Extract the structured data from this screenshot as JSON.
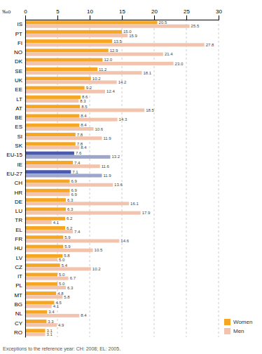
{
  "chart_data": {
    "type": "bar",
    "orientation": "horizontal",
    "xlabel": "‰o",
    "annotations": [
      "Exceptions to the reference year: CH: 2008; EL: 2005."
    ],
    "categories": [
      "IS",
      "PT",
      "FI",
      "NO",
      "DK",
      "SE",
      "UK",
      "EE",
      "LT",
      "AT",
      "BE",
      "ES",
      "SI",
      "SK",
      "EU-15",
      "IE",
      "EU-27",
      "CH",
      "HR",
      "DE",
      "LU",
      "TR",
      "EL",
      "FR",
      "HU",
      "LV",
      "CZ",
      "IT",
      "PL",
      "MT",
      "BG",
      "NL",
      "CY",
      "RO"
    ],
    "series": [
      {
        "name": "Women",
        "color": "#F5A623",
        "colors": [
          "#F5A623",
          "#F5A623",
          "#F5A623",
          "#F5A623",
          "#F5A623",
          "#F5A623",
          "#F5A623",
          "#F5A623",
          "#F5A623",
          "#F5A623",
          "#F5A623",
          "#F5A623",
          "#F5A623",
          "#F5A623",
          "#4A5BAD",
          "#F5A623",
          "#4A5BAD",
          "#F5A623",
          "#F5A623",
          "#F5A623",
          "#F5A623",
          "#F5A623",
          "#F5A623",
          "#F5A623",
          "#F5A623",
          "#F5A623",
          "#F5A623",
          "#F5A623",
          "#F5A623",
          "#F5A623",
          "#F5A623",
          "#F5A623",
          "#F5A623",
          "#F5A623"
        ],
        "values": [
          20.5,
          15.0,
          13.5,
          12.9,
          12.0,
          11.2,
          10.2,
          9.2,
          8.6,
          8.5,
          8.4,
          8.4,
          7.8,
          7.8,
          7.6,
          7.4,
          7.1,
          6.9,
          6.9,
          6.3,
          6.3,
          6.2,
          6.2,
          5.9,
          5.9,
          5.8,
          5.4,
          5.0,
          5.0,
          4.8,
          4.5,
          3.4,
          3.3,
          3.1
        ],
        "value_labels": [
          "20.5",
          "15.0",
          "13.5",
          "12.9",
          "12.0",
          "11.2",
          "10.2",
          "9.2",
          "8.6",
          "8.5",
          "8.4",
          "8.4",
          "7.8",
          "7.8",
          "7.6",
          "7.4",
          "7.1",
          "6.9",
          "6.9",
          "6.3",
          "6.3",
          "6.2",
          "6.2",
          "5.9",
          "5.9",
          "5.8",
          "5.4",
          "5.0",
          "5.0",
          "4.8",
          "4.5",
          "3.4",
          "3.3",
          "3.1"
        ]
      },
      {
        "name": "Men",
        "color": "#F2C4AE",
        "colors": [
          "#F2C4AE",
          "#F2C4AE",
          "#F2C4AE",
          "#F2C4AE",
          "#F2C4AE",
          "#F2C4AE",
          "#F2C4AE",
          "#F2C4AE",
          "#F2C4AE",
          "#F2C4AE",
          "#F2C4AE",
          "#F2C4AE",
          "#F2C4AE",
          "#F2C4AE",
          "#9DA6CC",
          "#F2C4AE",
          "#9DA6CC",
          "#F2C4AE",
          "#F2C4AE",
          "#F2C4AE",
          "#F2C4AE",
          "#F2C4AE",
          "#F2C4AE",
          "#F2C4AE",
          "#F2C4AE",
          "#F2C4AE",
          "#F2C4AE",
          "#F2C4AE",
          "#F2C4AE",
          "#F2C4AE",
          "#F2C4AE",
          "#F2C4AE",
          "#F2C4AE",
          "#F2C4AE"
        ],
        "values": [
          25.5,
          15.9,
          27.8,
          21.4,
          23.0,
          18.1,
          14.2,
          12.4,
          8.3,
          18.5,
          14.3,
          10.6,
          11.9,
          8.4,
          13.2,
          11.6,
          11.9,
          13.6,
          6.9,
          16.1,
          17.9,
          4.1,
          7.4,
          14.6,
          10.5,
          5.0,
          10.2,
          6.7,
          6.3,
          5.8,
          4.1,
          8.4,
          4.9,
          3.1
        ],
        "value_labels": [
          "25.5",
          "15.9",
          "27.8",
          "21.4",
          "23.0",
          "18.1",
          "14.2",
          "12.4",
          "8.3",
          "18.5",
          "14.3",
          "10.6",
          "11.9",
          "8.4",
          "13.2",
          "11.6",
          "11.9",
          "13.6",
          "6.9",
          "16.1",
          "17.9",
          "4.1",
          "7.4",
          "14.6",
          "10.5",
          "5.0",
          "10.2",
          "6.7",
          "6.3",
          "5.8",
          "4.1",
          "8.4",
          "4.9",
          "3.1"
        ]
      }
    ],
    "xlim": [
      0,
      30
    ],
    "xticks": [
      0,
      5,
      10,
      15,
      20,
      25,
      30
    ],
    "grid": true,
    "legend": "lower right",
    "data_labels": true
  }
}
